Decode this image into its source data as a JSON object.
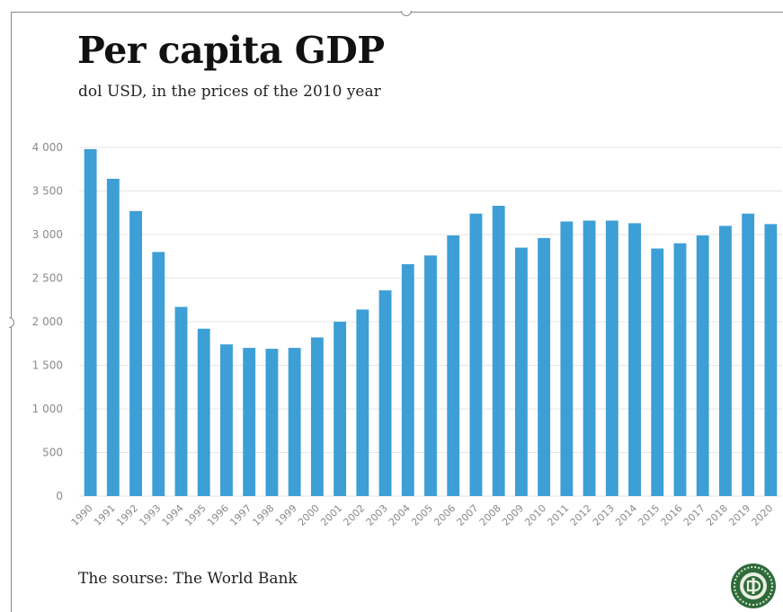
{
  "header": {
    "title": "Per capita GDP",
    "subtitle": "dol USD, in the prices of the 2010 year"
  },
  "footer": {
    "source": "The sourse: The World Bank"
  },
  "colors": {
    "bar": "#3d9fd6",
    "grid": "#e6e6e6",
    "axis_text": "#8a8a8a",
    "logo_green": "#2f6b3a"
  },
  "chart_data": {
    "type": "bar",
    "title": "Per capita GDP",
    "subtitle": "dol USD, in the prices of the 2010 year",
    "xlabel": "",
    "ylabel": "",
    "ylim": [
      0,
      4000
    ],
    "yticks": [
      0,
      500,
      1000,
      1500,
      2000,
      2500,
      3000,
      3500,
      4000
    ],
    "ytick_labels": [
      "0",
      "500",
      "1 000",
      "1 500",
      "2 000",
      "2 500",
      "3 000",
      "3 500",
      "4 000"
    ],
    "grid": true,
    "legend": "none",
    "categories": [
      "1990",
      "1991",
      "1992",
      "1993",
      "1994",
      "1995",
      "1996",
      "1997",
      "1998",
      "1999",
      "2000",
      "2001",
      "2002",
      "2003",
      "2004",
      "2005",
      "2006",
      "2007",
      "2008",
      "2009",
      "2010",
      "2011",
      "2012",
      "2013",
      "2014",
      "2015",
      "2016",
      "2017",
      "2018",
      "2019",
      "2020"
    ],
    "values": [
      3980,
      3640,
      3270,
      2800,
      2170,
      1920,
      1740,
      1700,
      1690,
      1700,
      1820,
      2000,
      2140,
      2360,
      2660,
      2760,
      2990,
      3240,
      3330,
      2850,
      2960,
      3150,
      3160,
      3160,
      3130,
      2840,
      2900,
      2990,
      3100,
      3240,
      3120
    ]
  }
}
